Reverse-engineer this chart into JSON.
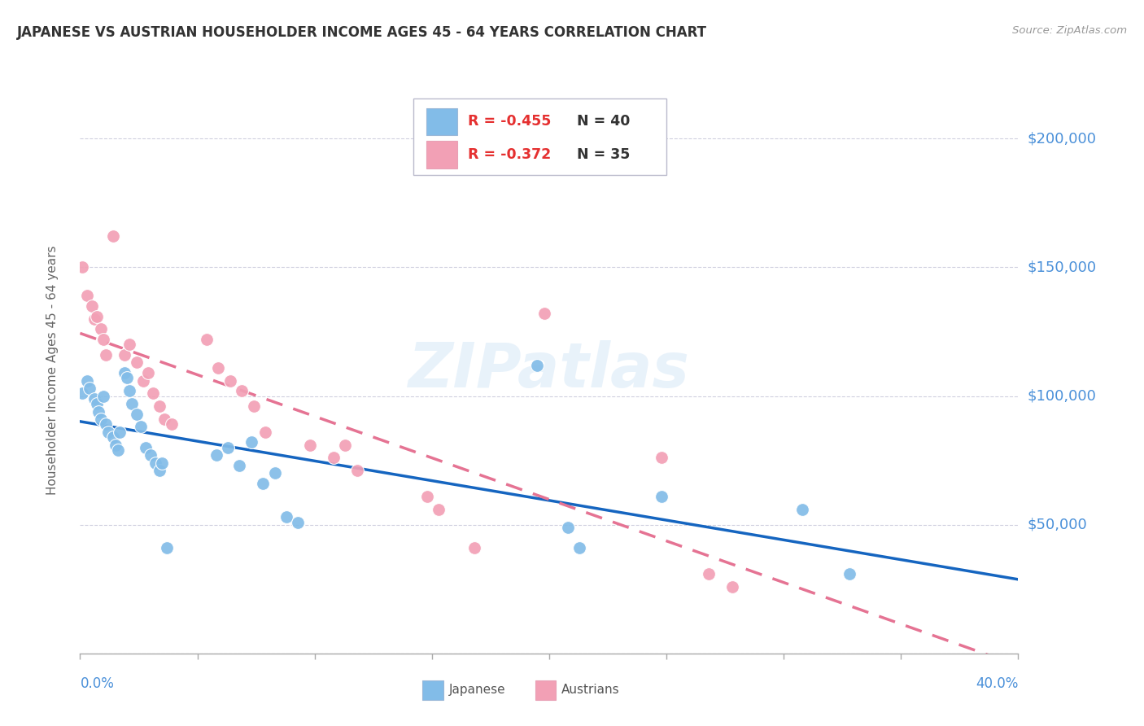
{
  "title": "JAPANESE VS AUSTRIAN HOUSEHOLDER INCOME AGES 45 - 64 YEARS CORRELATION CHART",
  "source": "Source: ZipAtlas.com",
  "ylabel": "Householder Income Ages 45 - 64 years",
  "xmin": 0.0,
  "xmax": 0.4,
  "ymin": 0,
  "ymax": 220000,
  "yticks": [
    0,
    50000,
    100000,
    150000,
    200000
  ],
  "ytick_labels": [
    "",
    "$50,000",
    "$100,000",
    "$150,000",
    "$200,000"
  ],
  "watermark": "ZIPatlas",
  "japanese_color": "#82bce8",
  "austrian_color": "#f2a0b5",
  "japanese_R": -0.455,
  "japanese_N": 40,
  "austrian_R": -0.372,
  "austrian_N": 35,
  "japanese_points": [
    [
      0.001,
      101000
    ],
    [
      0.003,
      106000
    ],
    [
      0.004,
      103000
    ],
    [
      0.006,
      99000
    ],
    [
      0.007,
      97000
    ],
    [
      0.008,
      94000
    ],
    [
      0.009,
      91000
    ],
    [
      0.01,
      100000
    ],
    [
      0.011,
      89000
    ],
    [
      0.012,
      86000
    ],
    [
      0.014,
      84000
    ],
    [
      0.015,
      81000
    ],
    [
      0.016,
      79000
    ],
    [
      0.017,
      86000
    ],
    [
      0.019,
      109000
    ],
    [
      0.02,
      107000
    ],
    [
      0.021,
      102000
    ],
    [
      0.022,
      97000
    ],
    [
      0.024,
      93000
    ],
    [
      0.026,
      88000
    ],
    [
      0.028,
      80000
    ],
    [
      0.03,
      77000
    ],
    [
      0.032,
      74000
    ],
    [
      0.034,
      71000
    ],
    [
      0.035,
      74000
    ],
    [
      0.037,
      41000
    ],
    [
      0.058,
      77000
    ],
    [
      0.063,
      80000
    ],
    [
      0.068,
      73000
    ],
    [
      0.073,
      82000
    ],
    [
      0.078,
      66000
    ],
    [
      0.083,
      70000
    ],
    [
      0.088,
      53000
    ],
    [
      0.093,
      51000
    ],
    [
      0.195,
      112000
    ],
    [
      0.208,
      49000
    ],
    [
      0.213,
      41000
    ],
    [
      0.248,
      61000
    ],
    [
      0.308,
      56000
    ],
    [
      0.328,
      31000
    ]
  ],
  "austrian_points": [
    [
      0.001,
      150000
    ],
    [
      0.003,
      139000
    ],
    [
      0.005,
      135000
    ],
    [
      0.006,
      130000
    ],
    [
      0.007,
      131000
    ],
    [
      0.009,
      126000
    ],
    [
      0.01,
      122000
    ],
    [
      0.011,
      116000
    ],
    [
      0.014,
      162000
    ],
    [
      0.019,
      116000
    ],
    [
      0.021,
      120000
    ],
    [
      0.024,
      113000
    ],
    [
      0.027,
      106000
    ],
    [
      0.029,
      109000
    ],
    [
      0.031,
      101000
    ],
    [
      0.034,
      96000
    ],
    [
      0.036,
      91000
    ],
    [
      0.039,
      89000
    ],
    [
      0.054,
      122000
    ],
    [
      0.059,
      111000
    ],
    [
      0.064,
      106000
    ],
    [
      0.069,
      102000
    ],
    [
      0.074,
      96000
    ],
    [
      0.079,
      86000
    ],
    [
      0.098,
      81000
    ],
    [
      0.108,
      76000
    ],
    [
      0.113,
      81000
    ],
    [
      0.118,
      71000
    ],
    [
      0.148,
      61000
    ],
    [
      0.153,
      56000
    ],
    [
      0.168,
      41000
    ],
    [
      0.198,
      132000
    ],
    [
      0.248,
      76000
    ],
    [
      0.268,
      31000
    ],
    [
      0.278,
      26000
    ]
  ],
  "line_color_japanese": "#1565c0",
  "line_color_austrian": "#e57393",
  "background_color": "#ffffff",
  "grid_color": "#c5c5d8"
}
